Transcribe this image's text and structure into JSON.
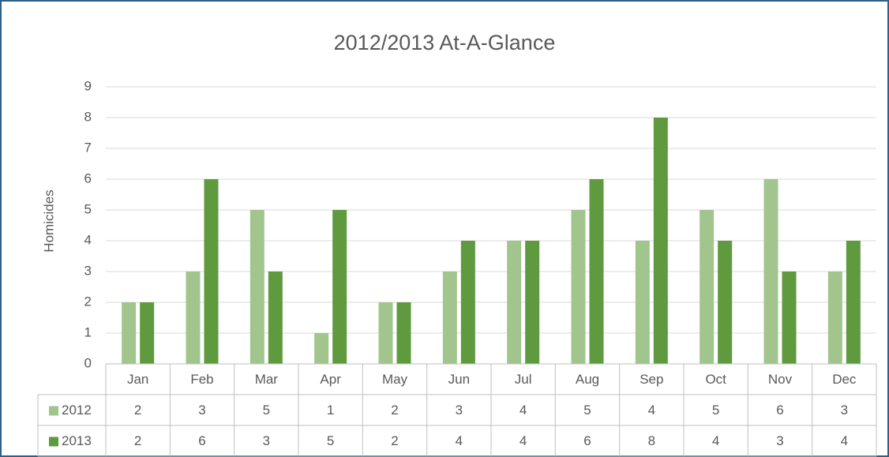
{
  "chart_data": {
    "type": "bar",
    "title": "2012/2013 At-A-Glance",
    "y_label": "Homicides",
    "categories": [
      "Jan",
      "Feb",
      "Mar",
      "Apr",
      "May",
      "Jun",
      "Jul",
      "Aug",
      "Sep",
      "Oct",
      "Nov",
      "Dec"
    ],
    "series": [
      {
        "name": "2012",
        "color": "#a2c58e",
        "values": [
          2,
          3,
          5,
          1,
          2,
          3,
          4,
          5,
          4,
          5,
          6,
          3
        ]
      },
      {
        "name": "2013",
        "color": "#5f9a3e",
        "values": [
          2,
          6,
          3,
          5,
          2,
          4,
          4,
          6,
          8,
          4,
          3,
          4
        ]
      }
    ],
    "ylim": [
      0,
      9
    ],
    "yticks": [
      0,
      1,
      2,
      3,
      4,
      5,
      6,
      7,
      8,
      9
    ],
    "grid": true,
    "data_table": true
  }
}
